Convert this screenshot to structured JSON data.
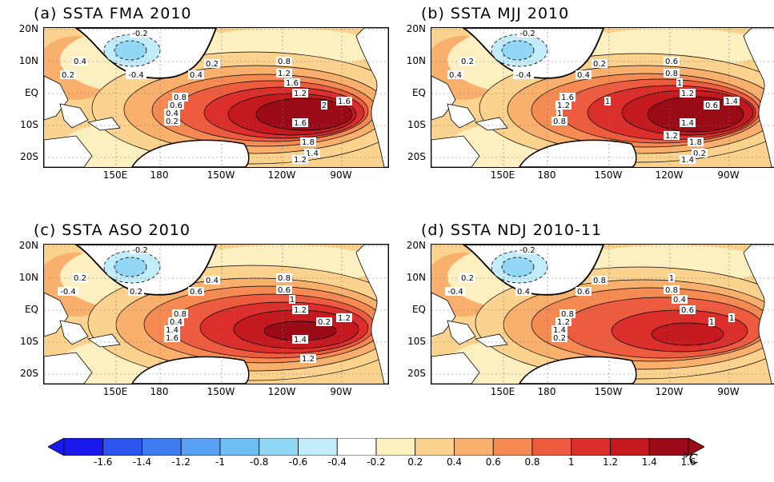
{
  "panels": [
    {
      "title": "(a) SSTA FMA 2010",
      "variant": 0,
      "contour_labels": [
        "-0.2",
        "0.4",
        "0.2",
        "-0.4",
        "0.2",
        "0.4",
        "0.8",
        "1.2",
        "1.6",
        "1.2",
        "1.6",
        "0.8",
        "0.6",
        "0.4",
        "0.2",
        "2",
        "1.6",
        "1.8",
        "1.4",
        "1.2"
      ]
    },
    {
      "title": "(b) SSTA MJJ 2010",
      "variant": 1,
      "contour_labels": [
        "-0.2",
        "0.2",
        "0.4",
        "-0.4",
        "0.2",
        "0.4",
        "0.6",
        "0.8",
        "1",
        "1.2",
        "1.4",
        "1.6",
        "1.2",
        "1",
        "0.8",
        "0.6",
        "1.4",
        "1.8",
        "0.2",
        "1.4",
        "1.2",
        "1"
      ]
    },
    {
      "title": "(c) SSTA ASO 2010",
      "variant": 2,
      "contour_labels": [
        "-0.2",
        "0.2",
        "-0.4",
        "0.2",
        "0.4",
        "0.6",
        "0.8",
        "0.6",
        "1",
        "1.2",
        "1.2",
        "0.8",
        "0.4",
        "1.4",
        "1.6",
        "0.2",
        "1.4",
        "1.2"
      ]
    },
    {
      "title": "(d) SSTA NDJ 2010-11",
      "variant": 3,
      "contour_labels": [
        "-0.2",
        "0.2",
        "-0.4",
        "0.4",
        "0.8",
        "0.6",
        "1",
        "0.8",
        "0.4",
        "0.6",
        "1",
        "0.8",
        "1.2",
        "1.4",
        "0.2",
        "1"
      ]
    }
  ],
  "lat_ticks": [
    "20N",
    "10N",
    "EQ",
    "10S",
    "20S"
  ],
  "lon_ticks": [
    "150E",
    "180",
    "150W",
    "120W",
    "90W"
  ],
  "colorbar": {
    "labels": [
      "-1.6",
      "-1.4",
      "-1.2",
      "-1",
      "-0.8",
      "-0.6",
      "-0.4",
      "-0.2",
      "0.2",
      "0.4",
      "0.6",
      "0.8",
      "1",
      "1.2",
      "1.4",
      "1.6"
    ],
    "colors": [
      "#1a1aef",
      "#2b55ec",
      "#3e7cf0",
      "#57a0f3",
      "#6fbff4",
      "#93d7f6",
      "#c2ecf9",
      "#ffffff",
      "#fdf0c0",
      "#fcd38e",
      "#f9b06c",
      "#f58a52",
      "#ee5c3f",
      "#dc2f2c",
      "#c3191f",
      "#9b0a17"
    ],
    "unit": "°C"
  }
}
